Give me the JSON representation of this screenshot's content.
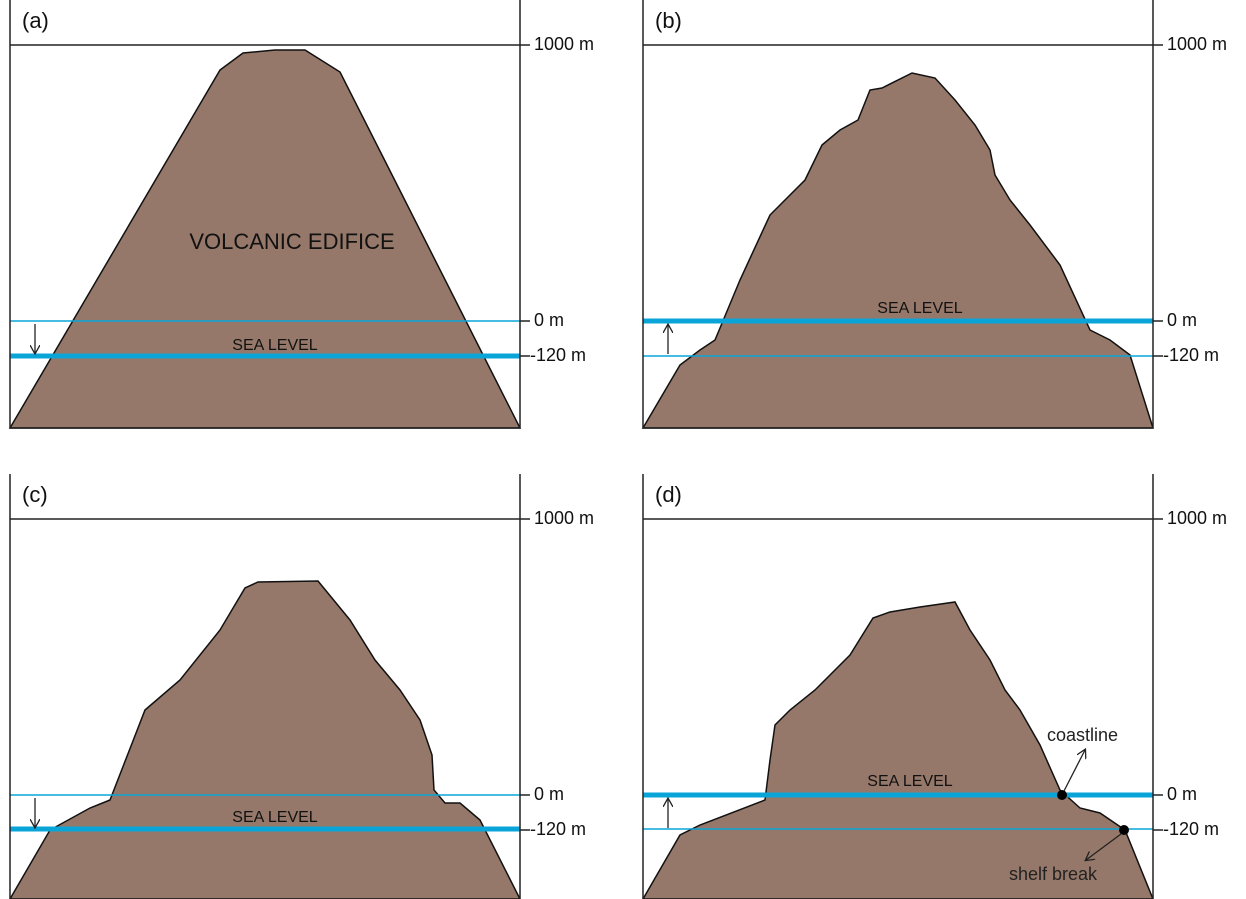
{
  "panels": [
    {
      "label": "(a)",
      "top_level": "1000 m",
      "zero_level": "0 m",
      "low_level": "-120 m",
      "sea_level": "SEA LEVEL",
      "edifice": "VOLCANIC EDIFICE"
    },
    {
      "label": "(b)",
      "top_level": "1000 m",
      "zero_level": "0 m",
      "low_level": "-120 m",
      "sea_level": "SEA LEVEL"
    },
    {
      "label": "(c)",
      "top_level": "1000 m",
      "zero_level": "0 m",
      "low_level": "-120 m",
      "sea_level": "SEA LEVEL"
    },
    {
      "label": "(d)",
      "top_level": "1000 m",
      "zero_level": "0 m",
      "low_level": "-120 m",
      "sea_level": "SEA LEVEL",
      "coastline": "coastline",
      "shelf_break": "shelf break"
    }
  ]
}
